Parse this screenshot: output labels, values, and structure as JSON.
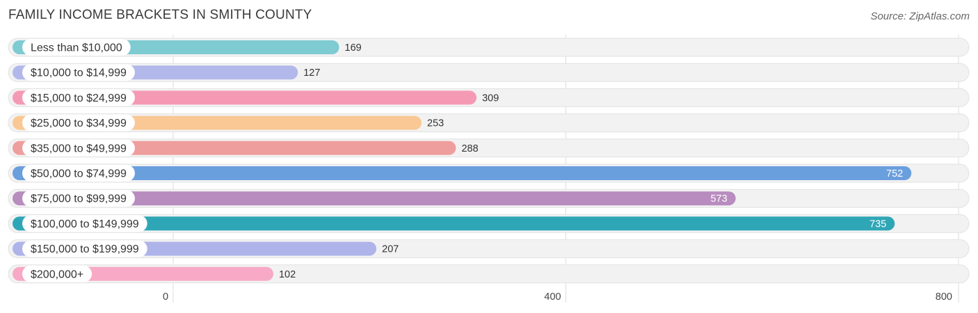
{
  "chart_data": {
    "type": "bar",
    "orientation": "horizontal",
    "title": "FAMILY INCOME BRACKETS IN SMITH COUNTY",
    "source": "Source: ZipAtlas.com",
    "categories": [
      "Less than $10,000",
      "$10,000 to $14,999",
      "$15,000 to $24,999",
      "$25,000 to $34,999",
      "$35,000 to $49,999",
      "$50,000 to $74,999",
      "$75,000 to $99,999",
      "$100,000 to $149,999",
      "$150,000 to $199,999",
      "$200,000+"
    ],
    "values": [
      169,
      127,
      309,
      253,
      288,
      752,
      573,
      735,
      207,
      102
    ],
    "colors": [
      "#7ecbd2",
      "#b3b8ea",
      "#f59ab5",
      "#f9c894",
      "#ee9e9c",
      "#6a9fde",
      "#b88cbf",
      "#2fa6b6",
      "#aeb3ea",
      "#f7a9c6"
    ],
    "x_ticks": [
      0,
      400,
      800
    ],
    "xlim": [
      0,
      800
    ],
    "xlabel": "",
    "ylabel": "",
    "grid": true
  }
}
